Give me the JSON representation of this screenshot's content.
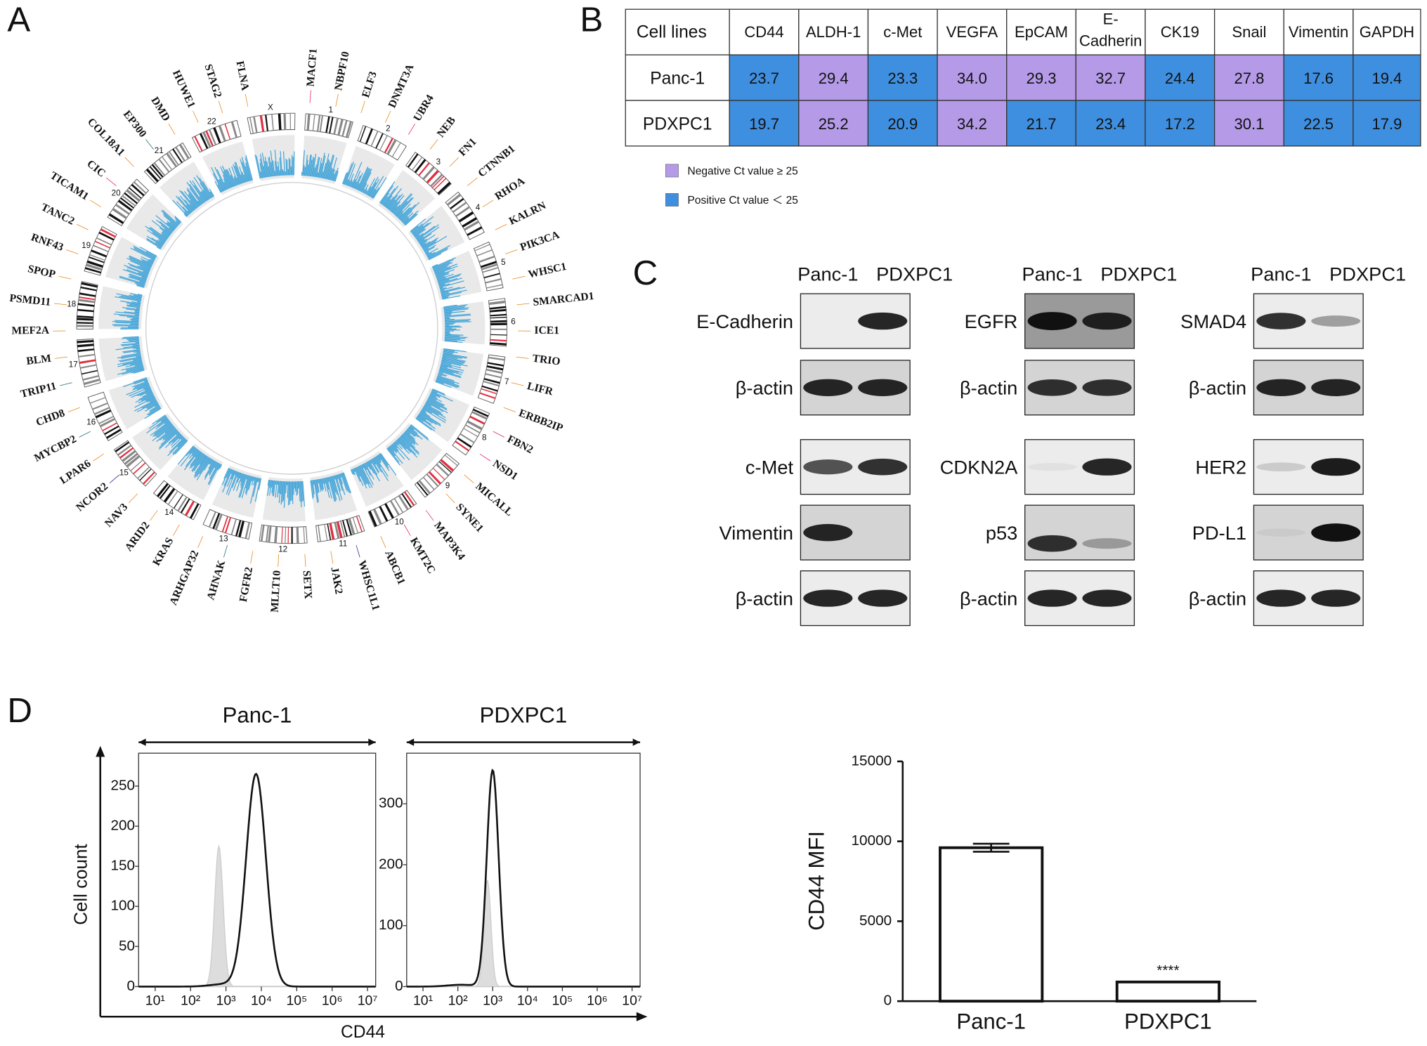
{
  "panel_labels": [
    "A",
    "B",
    "C",
    "D"
  ],
  "circos": {
    "chromosomes": [
      "1",
      "2",
      "3",
      "4",
      "5",
      "6",
      "7",
      "8",
      "9",
      "10",
      "11",
      "12",
      "13",
      "14",
      "15",
      "16",
      "17",
      "18",
      "19",
      "20",
      "21",
      "22",
      "X"
    ],
    "genes": [
      {
        "name": "MACF1",
        "color": "#e0207a"
      },
      {
        "name": "NBPF10",
        "color": "#e8861a"
      },
      {
        "name": "ELF3",
        "color": "#e8861a"
      },
      {
        "name": "DNMT3A",
        "color": "#e8861a"
      },
      {
        "name": "UBR4",
        "color": "#e0207a"
      },
      {
        "name": "NEB",
        "color": "#e8861a"
      },
      {
        "name": "FN1",
        "color": "#e8861a"
      },
      {
        "name": "CTNNB1",
        "color": "#e8861a"
      },
      {
        "name": "RHOA",
        "color": "#e8861a"
      },
      {
        "name": "KALRN",
        "color": "#e8861a"
      },
      {
        "name": "PIK3CA",
        "color": "#e8861a"
      },
      {
        "name": "WHSC1",
        "color": "#e8861a"
      },
      {
        "name": "SMARCAD1",
        "color": "#e8861a"
      },
      {
        "name": "ICE1",
        "color": "#e8861a"
      },
      {
        "name": "TRIO",
        "color": "#e8861a"
      },
      {
        "name": "LIFR",
        "color": "#e8861a"
      },
      {
        "name": "ERBB2IP",
        "color": "#e8861a"
      },
      {
        "name": "FBN2",
        "color": "#e0207a"
      },
      {
        "name": "NSD1",
        "color": "#e0207a"
      },
      {
        "name": "MICALL",
        "color": "#e8861a"
      },
      {
        "name": "SYNE1",
        "color": "#e8861a"
      },
      {
        "name": "MAP3K4",
        "color": "#e0207a"
      },
      {
        "name": "KMT2C",
        "color": "#e0207a"
      },
      {
        "name": "ABCB1",
        "color": "#e8861a"
      },
      {
        "name": "WHSC1L1",
        "color": "#2a2a8a"
      },
      {
        "name": "JAK2",
        "color": "#e8861a"
      },
      {
        "name": "SETX",
        "color": "#e8861a"
      },
      {
        "name": "MLLT10",
        "color": "#e8861a"
      },
      {
        "name": "FGFR2",
        "color": "#e8861a"
      },
      {
        "name": "AHNAK",
        "color": "#1f6f7a"
      },
      {
        "name": "ARHGAP32",
        "color": "#e8861a"
      },
      {
        "name": "KRAS",
        "color": "#e8861a"
      },
      {
        "name": "ARID2",
        "color": "#e8861a"
      },
      {
        "name": "NAV3",
        "color": "#e8861a"
      },
      {
        "name": "NCOR2",
        "color": "#2a2a8a"
      },
      {
        "name": "LPAR6",
        "color": "#e8861a"
      },
      {
        "name": "MYCBP2",
        "color": "#1f6f7a"
      },
      {
        "name": "CHD8",
        "color": "#e8861a"
      },
      {
        "name": "TRIP11",
        "color": "#1f6f7a"
      },
      {
        "name": "BLM",
        "color": "#e8861a"
      },
      {
        "name": "MEF2A",
        "color": "#e8861a"
      },
      {
        "name": "PSMD11",
        "color": "#e8861a"
      },
      {
        "name": "SPOP",
        "color": "#e8861a"
      },
      {
        "name": "RNF43",
        "color": "#e8861a"
      },
      {
        "name": "TANC2",
        "color": "#e8861a"
      },
      {
        "name": "TICAM1",
        "color": "#e8861a"
      },
      {
        "name": "CIC",
        "color": "#e0207a"
      },
      {
        "name": "COL18A1",
        "color": "#e8861a"
      },
      {
        "name": "EP300",
        "color": "#1f6f7a"
      },
      {
        "name": "DMD",
        "color": "#e8861a"
      },
      {
        "name": "HUWE1",
        "color": "#e8861a"
      },
      {
        "name": "STAG2",
        "color": "#e8861a"
      },
      {
        "name": "FLNA",
        "color": "#e8861a"
      }
    ]
  },
  "table": {
    "header": [
      "Cell lines",
      "CD44",
      "ALDH-1",
      "c-Met",
      "VEGFA",
      "EpCAM",
      [
        "E-",
        "Cadherin"
      ],
      "CK19",
      "Snail",
      "Vimentin",
      "GAPDH"
    ],
    "header_colors": [
      "#222",
      "#3cc0c0",
      "#3cc0c0",
      "#1a2a5a",
      "#e8206a",
      "#a070e0",
      "#a070e0",
      "#a070e0",
      "#8a2aa0",
      "#7a20b0",
      "#888888"
    ],
    "rows": [
      [
        "Panc-1",
        "23.7",
        "29.4",
        "23.3",
        "34.0",
        "29.3",
        "32.7",
        "24.4",
        "27.8",
        "17.6",
        "19.4"
      ],
      [
        "PDXPC1",
        "19.7",
        "25.2",
        "20.9",
        "34.2",
        "21.7",
        "23.4",
        "17.2",
        "30.1",
        "22.5",
        "17.9"
      ]
    ],
    "threshold": 25,
    "legend": [
      {
        "label": "Negative Ct value ≥ 25",
        "color": "#b59ae8"
      },
      {
        "label": "Positive Ct value ＜ 25",
        "color": "#3f8fe0"
      }
    ]
  },
  "western": {
    "columns": [
      "Panc-1",
      "PDXPC1"
    ],
    "groups": [
      [
        "E-Cadherin",
        "β-actin",
        "c-Met",
        "Vimentin",
        "β-actin"
      ],
      [
        "EGFR",
        "β-actin",
        "CDKN2A",
        "p53",
        "β-actin"
      ],
      [
        "SMAD4",
        "β-actin",
        "HER2",
        "PD-L1",
        "β-actin"
      ]
    ]
  },
  "chart_data": [
    {
      "type": "density",
      "title": "Panc-1",
      "xlabel": "CD44",
      "ylabel": "Cell count",
      "log_x": true,
      "xlim": [
        3.4,
        17000000
      ],
      "xticks": [
        {
          "value": 10,
          "label": "10¹"
        },
        {
          "value": 100,
          "label": "10²"
        },
        {
          "value": 1000,
          "label": "10³"
        },
        {
          "value": 10000,
          "label": "10⁴"
        },
        {
          "value": 100000,
          "label": "10⁵"
        },
        {
          "value": 1000000,
          "label": "10⁶"
        },
        {
          "value": 10000000,
          "label": "10⁷"
        }
      ],
      "ylim": [
        0,
        291
      ],
      "yticks": [
        0,
        50,
        100,
        150,
        200,
        250
      ]
    },
    {
      "type": "density",
      "title": "PDXPC1",
      "log_x": true,
      "xlim": [
        3.4,
        17000000
      ],
      "xticks": [
        {
          "value": 10,
          "label": "10¹"
        },
        {
          "value": 100,
          "label": "10²"
        },
        {
          "value": 1000,
          "label": "10³"
        },
        {
          "value": 10000,
          "label": "10⁴"
        },
        {
          "value": 100000,
          "label": "10⁵"
        },
        {
          "value": 1000000,
          "label": "10⁶"
        },
        {
          "value": 10000000,
          "label": "10⁷"
        }
      ],
      "ylim": [
        0,
        383
      ],
      "yticks": [
        0,
        100,
        200,
        300
      ]
    },
    {
      "type": "bar",
      "ylabel": "CD44 MFI",
      "categories": [
        "Panc-1",
        "PDXPC1"
      ],
      "values": [
        9600,
        1200
      ],
      "errors": [
        250,
        null
      ],
      "ylim": [
        0,
        15000
      ],
      "yticks": [
        0,
        5000,
        10000,
        15000
      ],
      "annotations": [
        null,
        "****"
      ]
    }
  ]
}
